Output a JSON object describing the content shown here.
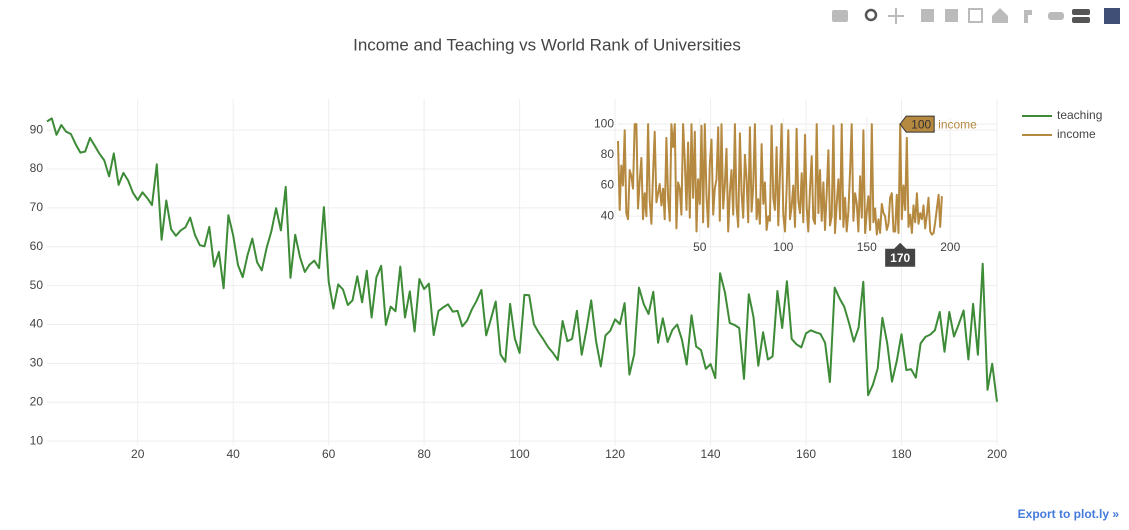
{
  "chart_data": [
    {
      "type": "line",
      "title": "Income and Teaching vs World Rank of Universities",
      "x": [
        1,
        2,
        3,
        4,
        5,
        6,
        7,
        8,
        9,
        10,
        11,
        12,
        13,
        14,
        15,
        16,
        17,
        18,
        19,
        20,
        21,
        22,
        23,
        24,
        25,
        26,
        27,
        28,
        29,
        30,
        31,
        32,
        33,
        34,
        35,
        36,
        37,
        38,
        39,
        40,
        41,
        42,
        43,
        44,
        45,
        46,
        47,
        48,
        49,
        50,
        51,
        52,
        53,
        54,
        55,
        56,
        57,
        58,
        59,
        60,
        61,
        62,
        63,
        64,
        65,
        66,
        67,
        68,
        69,
        70,
        71,
        72,
        73,
        74,
        75,
        76,
        77,
        78,
        79,
        80,
        81,
        82,
        83,
        84,
        85,
        86,
        87,
        88,
        89,
        90,
        91,
        92,
        93,
        94,
        95,
        96,
        97,
        98,
        99,
        100,
        101,
        102,
        103,
        104,
        105,
        106,
        107,
        108,
        109,
        110,
        111,
        112,
        113,
        114,
        115,
        116,
        117,
        118,
        119,
        120,
        121,
        122,
        123,
        124,
        125,
        126,
        127,
        128,
        129,
        130,
        131,
        132,
        133,
        134,
        135,
        136,
        137,
        138,
        139,
        140,
        141,
        142,
        143,
        144,
        145,
        146,
        147,
        148,
        149,
        150,
        151,
        152,
        153,
        154,
        155,
        156,
        157,
        158,
        159,
        160,
        161,
        162,
        163,
        164,
        165,
        166,
        167,
        168,
        169,
        170,
        171,
        172,
        173,
        174,
        175,
        176,
        177,
        178,
        179,
        180,
        181,
        182,
        183,
        184,
        185,
        186,
        187,
        188,
        189,
        190,
        191,
        192,
        193,
        194,
        195,
        196,
        197,
        198,
        199,
        200
      ],
      "series": [
        {
          "name": "teaching",
          "color": "#3d8b37",
          "values": [
            92.2,
            93,
            88.8,
            91.3,
            89.6,
            89,
            86.4,
            84.2,
            84.5,
            88,
            86,
            83.9,
            82.2,
            78.1,
            84,
            75.9,
            79,
            77,
            73.9,
            72,
            74,
            72.5,
            70.7,
            81.2,
            61.8,
            71.9,
            64.5,
            62.8,
            64.2,
            65,
            67.5,
            63,
            60.4,
            60.1,
            65.1,
            54.9,
            58.7,
            49.3,
            68.1,
            62.9,
            55.3,
            52.2,
            57.8,
            62.1,
            56,
            53.9,
            59.7,
            64,
            69.9,
            64.2,
            75.4,
            52,
            63.1,
            57.3,
            53.5,
            55.4,
            56.4,
            54.5,
            70.2,
            51,
            44.1,
            50.3,
            49,
            45,
            46.2,
            52.4,
            45.7,
            53.8,
            41.8,
            52.1,
            55.1,
            39.9,
            44.6,
            43.4,
            54.9,
            41.8,
            48.5,
            38.2,
            51.7,
            49.1,
            50.5,
            37.3,
            43.5,
            44.4,
            45.2,
            43.3,
            43.5,
            39.5,
            41,
            43.9,
            46.1,
            48.9,
            37.2,
            41.5,
            45.9,
            32.3,
            30.4,
            45.3,
            36.4,
            32.7,
            47.6,
            47.5,
            40.1,
            37.9,
            36.1,
            34.1,
            32.7,
            30.9,
            40.9,
            35.7,
            36.3,
            43.5,
            32.2,
            38.6,
            46.2,
            35.8,
            29.2,
            37.2,
            38.4,
            41.3,
            40.1,
            45.5,
            27.1,
            32.3,
            49.5,
            45.3,
            42.7,
            48.4,
            35.3,
            41.6,
            35.5,
            38.6,
            40,
            36.1,
            29.7,
            42.4,
            34.3,
            33.4,
            28.6,
            29.8,
            26.2,
            53.2,
            48.3,
            40.4,
            39.9,
            39.1,
            26,
            47.8,
            41.9,
            29.4,
            38,
            31,
            31.8,
            48.6,
            39.1,
            51.1,
            36.3,
            34.9,
            34.1,
            37.7,
            38.5,
            38,
            37.6,
            35.3,
            25.2,
            49.5,
            46.7,
            44.6,
            40.4,
            35.6,
            39.2,
            51,
            21.8,
            24.5,
            28.7,
            41.7,
            35.2,
            25.3,
            30.5,
            37.5,
            28.3,
            28.5,
            26.3,
            35.1,
            36.8,
            37.4,
            38.5,
            43.2,
            33,
            43.2,
            36.9,
            40.1,
            43.6,
            31,
            45.3,
            32.2,
            55.6,
            23.2,
            29.9,
            20.1
          ]
        }
      ],
      "xlim": [
        1,
        200
      ],
      "ylim": [
        9,
        98
      ],
      "xticks": [
        20,
        40,
        60,
        80,
        100,
        120,
        140,
        160,
        180,
        200
      ],
      "yticks": [
        10,
        20,
        30,
        40,
        50,
        60,
        70,
        80,
        90
      ],
      "grid": true
    },
    {
      "type": "line",
      "x": [
        1,
        2,
        3,
        4,
        5,
        6,
        7,
        8,
        9,
        10,
        11,
        12,
        13,
        14,
        15,
        16,
        17,
        18,
        19,
        20,
        21,
        22,
        23,
        24,
        25,
        26,
        27,
        28,
        29,
        30,
        31,
        32,
        33,
        34,
        35,
        36,
        37,
        38,
        39,
        40,
        41,
        42,
        43,
        44,
        45,
        46,
        47,
        48,
        49,
        50,
        51,
        52,
        53,
        54,
        55,
        56,
        57,
        58,
        59,
        60,
        61,
        62,
        63,
        64,
        65,
        66,
        67,
        68,
        69,
        70,
        71,
        72,
        73,
        74,
        75,
        76,
        77,
        78,
        79,
        80,
        81,
        82,
        83,
        84,
        85,
        86,
        87,
        88,
        89,
        90,
        91,
        92,
        93,
        94,
        95,
        96,
        97,
        98,
        99,
        100,
        101,
        102,
        103,
        104,
        105,
        106,
        107,
        108,
        109,
        110,
        111,
        112,
        113,
        114,
        115,
        116,
        117,
        118,
        119,
        120,
        121,
        122,
        123,
        124,
        125,
        126,
        127,
        128,
        129,
        130,
        131,
        132,
        133,
        134,
        135,
        136,
        137,
        138,
        139,
        140,
        141,
        142,
        143,
        144,
        145,
        146,
        147,
        148,
        149,
        150,
        151,
        152,
        153,
        154,
        155,
        156,
        157,
        158,
        159,
        160,
        161,
        162,
        163,
        164,
        165,
        166,
        167,
        168,
        169,
        170,
        171,
        172,
        173,
        174,
        175,
        176,
        177,
        178,
        179,
        180,
        181,
        182,
        183,
        184,
        185,
        186,
        187,
        188,
        189,
        190,
        191,
        192,
        193,
        194,
        195
      ],
      "series": [
        {
          "name": "income",
          "color": "#b5893f",
          "values": [
            89,
            44,
            73,
            60,
            96,
            42,
            38,
            70,
            66,
            58,
            100,
            100,
            45,
            63,
            78,
            38,
            55,
            40,
            100,
            50,
            35,
            68,
            95,
            49,
            55,
            61,
            47,
            58,
            38,
            91,
            52,
            37,
            100,
            85,
            100,
            32,
            62,
            58,
            41,
            100,
            76,
            44,
            88,
            39,
            100,
            52,
            95,
            30,
            64,
            48,
            99,
            36,
            100,
            53,
            33,
            74,
            90,
            41,
            58,
            64,
            98,
            37,
            100,
            45,
            61,
            84,
            30,
            56,
            70,
            41,
            100,
            47,
            33,
            94,
            55,
            39,
            80,
            64,
            36,
            98,
            43,
            59,
            100,
            38,
            51,
            35,
            87,
            48,
            62,
            31,
            40,
            37,
            99,
            52,
            44,
            85,
            34,
            68,
            100,
            41,
            30,
            57,
            96,
            38,
            46,
            60,
            33,
            97,
            50,
            42,
            68,
            36,
            93,
            46,
            30,
            58,
            79,
            38,
            35,
            100,
            42,
            70,
            37,
            62,
            31,
            55,
            83,
            34,
            40,
            99,
            29,
            48,
            64,
            38,
            100,
            33,
            52,
            30,
            43,
            70,
            100,
            37,
            55,
            48,
            30,
            66,
            39,
            96,
            29,
            43,
            53,
            31,
            100,
            36,
            45,
            28,
            38,
            29,
            48,
            42,
            40,
            31,
            35,
            52,
            55,
            30,
            30,
            54,
            29,
            100,
            38,
            60,
            44,
            91,
            33,
            41,
            29,
            47,
            36,
            55,
            35,
            42,
            38,
            47,
            32,
            41,
            52,
            30,
            28,
            29,
            36,
            45,
            54,
            33,
            53
          ]
        }
      ],
      "xlim": [
        1,
        228
      ],
      "ylim": [
        24,
        104
      ],
      "xticks": [
        50,
        100,
        150,
        200
      ],
      "yticks": [
        40,
        60,
        80,
        100
      ],
      "grid": true,
      "hover": {
        "x": 170,
        "y": 100
      }
    }
  ],
  "export_link": "Export to plot.ly »"
}
